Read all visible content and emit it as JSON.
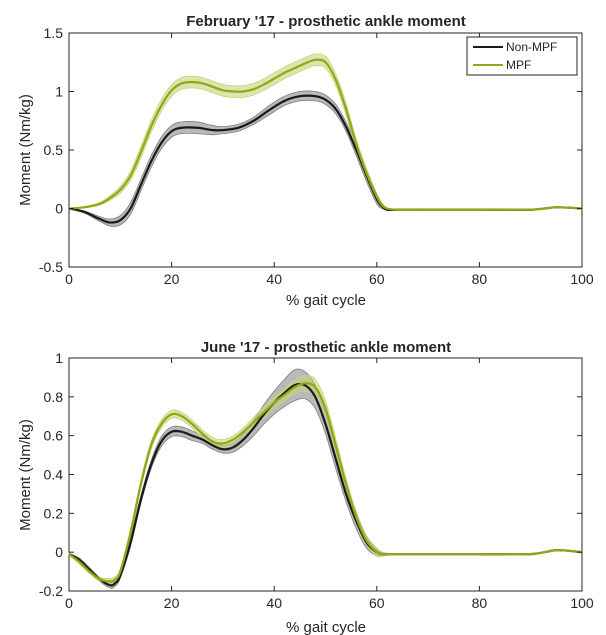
{
  "chart_data": [
    {
      "type": "line",
      "title": "February '17 - prosthetic ankle moment",
      "xlabel": "% gait cycle",
      "ylabel": "Moment (Nm/kg)",
      "xlim": [
        0,
        100
      ],
      "ylim": [
        -0.5,
        1.5
      ],
      "xticks": [
        0,
        20,
        40,
        60,
        80,
        100
      ],
      "yticks": [
        -0.5,
        0,
        0.5,
        1,
        1.5
      ],
      "yticklabels": [
        "-0.5",
        "0",
        "0.5",
        "1",
        "1.5"
      ],
      "grid": false,
      "legend": {
        "position": "top-right",
        "entries": [
          "Non-MPF",
          "MPF"
        ]
      },
      "series": [
        {
          "name": "Non-MPF",
          "color": "#1a1a1a",
          "band_color": "#7f7f7f",
          "x": [
            0,
            3,
            6,
            8,
            10,
            12,
            14,
            16,
            18,
            20,
            22,
            25,
            28,
            30,
            33,
            36,
            39,
            42,
            45,
            48,
            50,
            52,
            54,
            56,
            58,
            60,
            61,
            62,
            64,
            70,
            80,
            90,
            95,
            100
          ],
          "y": [
            0,
            -0.03,
            -0.09,
            -0.12,
            -0.1,
            0.0,
            0.2,
            0.4,
            0.56,
            0.66,
            0.69,
            0.69,
            0.67,
            0.67,
            0.69,
            0.75,
            0.84,
            0.92,
            0.96,
            0.96,
            0.93,
            0.85,
            0.7,
            0.5,
            0.28,
            0.08,
            0.02,
            -0.01,
            -0.01,
            -0.01,
            -0.01,
            -0.01,
            0.01,
            0
          ],
          "band": [
            0,
            0.01,
            0.02,
            0.03,
            0.04,
            0.05,
            0.05,
            0.05,
            0.05,
            0.05,
            0.05,
            0.05,
            0.04,
            0.03,
            0.03,
            0.03,
            0.04,
            0.04,
            0.04,
            0.04,
            0.04,
            0.04,
            0.04,
            0.05,
            0.05,
            0.04,
            0.02,
            0.005,
            0,
            0,
            0,
            0,
            0,
            0
          ]
        },
        {
          "name": "MPF",
          "color": "#8fa814",
          "band_color": "#c5d47a",
          "x": [
            0,
            3,
            6,
            8,
            10,
            12,
            14,
            16,
            18,
            20,
            22,
            24,
            26,
            28,
            30,
            32,
            34,
            36,
            38,
            40,
            42,
            44,
            46,
            48,
            50,
            52,
            54,
            56,
            58,
            60,
            61,
            62,
            64,
            70,
            80,
            90,
            95,
            100
          ],
          "y": [
            0,
            0.01,
            0.04,
            0.09,
            0.16,
            0.28,
            0.48,
            0.7,
            0.88,
            1.01,
            1.07,
            1.08,
            1.07,
            1.04,
            1.01,
            1.0,
            1.0,
            1.02,
            1.06,
            1.11,
            1.16,
            1.2,
            1.24,
            1.27,
            1.25,
            1.1,
            0.85,
            0.55,
            0.3,
            0.1,
            0.03,
            0.0,
            -0.01,
            -0.01,
            -0.01,
            -0.01,
            0.01,
            0
          ],
          "band": [
            0,
            0.005,
            0.01,
            0.02,
            0.03,
            0.04,
            0.05,
            0.05,
            0.05,
            0.05,
            0.05,
            0.05,
            0.05,
            0.05,
            0.05,
            0.05,
            0.05,
            0.05,
            0.05,
            0.05,
            0.05,
            0.05,
            0.05,
            0.05,
            0.05,
            0.05,
            0.05,
            0.04,
            0.04,
            0.03,
            0.02,
            0.005,
            0,
            0,
            0,
            0,
            0,
            0
          ]
        }
      ]
    },
    {
      "type": "line",
      "title": "June '17 - prosthetic ankle moment",
      "xlabel": "% gait cycle",
      "ylabel": "Moment (Nm/kg)",
      "xlim": [
        0,
        100
      ],
      "ylim": [
        -0.2,
        1
      ],
      "xticks": [
        0,
        20,
        40,
        60,
        80,
        100
      ],
      "yticks": [
        -0.2,
        0,
        0.2,
        0.4,
        0.6,
        0.8,
        1
      ],
      "yticklabels": [
        "-0.2",
        "0",
        "0.2",
        "0.4",
        "0.6",
        "0.8",
        "1"
      ],
      "grid": false,
      "series": [
        {
          "name": "Non-MPF",
          "color": "#1a1a1a",
          "band_color": "#7f7f7f",
          "x": [
            0,
            2,
            4,
            6,
            8,
            9,
            10,
            12,
            14,
            16,
            18,
            20,
            22,
            24,
            26,
            28,
            30,
            32,
            34,
            36,
            38,
            40,
            42,
            44,
            46,
            48,
            50,
            52,
            54,
            56,
            58,
            60,
            61,
            62,
            64,
            70,
            80,
            90,
            95,
            100
          ],
          "y": [
            -0.01,
            -0.04,
            -0.09,
            -0.14,
            -0.17,
            -0.16,
            -0.12,
            0.05,
            0.27,
            0.45,
            0.57,
            0.62,
            0.62,
            0.6,
            0.58,
            0.55,
            0.53,
            0.54,
            0.58,
            0.64,
            0.71,
            0.77,
            0.82,
            0.86,
            0.86,
            0.8,
            0.66,
            0.48,
            0.3,
            0.16,
            0.05,
            0.0,
            -0.01,
            -0.01,
            -0.01,
            -0.01,
            -0.01,
            -0.01,
            0.01,
            0
          ],
          "band": [
            0.005,
            0.01,
            0.01,
            0.01,
            0.015,
            0.015,
            0.015,
            0.02,
            0.02,
            0.02,
            0.025,
            0.025,
            0.025,
            0.025,
            0.02,
            0.02,
            0.02,
            0.025,
            0.03,
            0.04,
            0.05,
            0.06,
            0.07,
            0.08,
            0.07,
            0.06,
            0.05,
            0.05,
            0.04,
            0.04,
            0.03,
            0.02,
            0.01,
            0.005,
            0,
            0,
            0,
            0,
            0,
            0
          ]
        },
        {
          "name": "MPF",
          "color": "#8fa814",
          "band_color": "#c5d47a",
          "x": [
            0,
            2,
            4,
            6,
            8,
            9,
            10,
            12,
            14,
            16,
            18,
            20,
            22,
            24,
            26,
            28,
            30,
            32,
            34,
            36,
            38,
            40,
            42,
            44,
            46,
            48,
            50,
            52,
            54,
            56,
            58,
            60,
            61,
            62,
            64,
            70,
            80,
            90,
            95,
            100
          ],
          "y": [
            -0.01,
            -0.05,
            -0.1,
            -0.14,
            -0.15,
            -0.14,
            -0.1,
            0.1,
            0.35,
            0.55,
            0.66,
            0.71,
            0.7,
            0.66,
            0.61,
            0.57,
            0.56,
            0.58,
            0.62,
            0.67,
            0.72,
            0.77,
            0.81,
            0.85,
            0.87,
            0.85,
            0.74,
            0.55,
            0.35,
            0.18,
            0.06,
            0.0,
            -0.01,
            -0.01,
            -0.01,
            -0.01,
            -0.01,
            -0.01,
            0.01,
            0
          ],
          "band": [
            0.005,
            0.01,
            0.01,
            0.01,
            0.015,
            0.015,
            0.015,
            0.02,
            0.02,
            0.02,
            0.02,
            0.02,
            0.02,
            0.02,
            0.02,
            0.02,
            0.02,
            0.02,
            0.02,
            0.025,
            0.03,
            0.03,
            0.03,
            0.035,
            0.04,
            0.04,
            0.04,
            0.035,
            0.03,
            0.03,
            0.025,
            0.02,
            0.01,
            0.005,
            0,
            0,
            0,
            0,
            0,
            0
          ]
        }
      ]
    }
  ]
}
